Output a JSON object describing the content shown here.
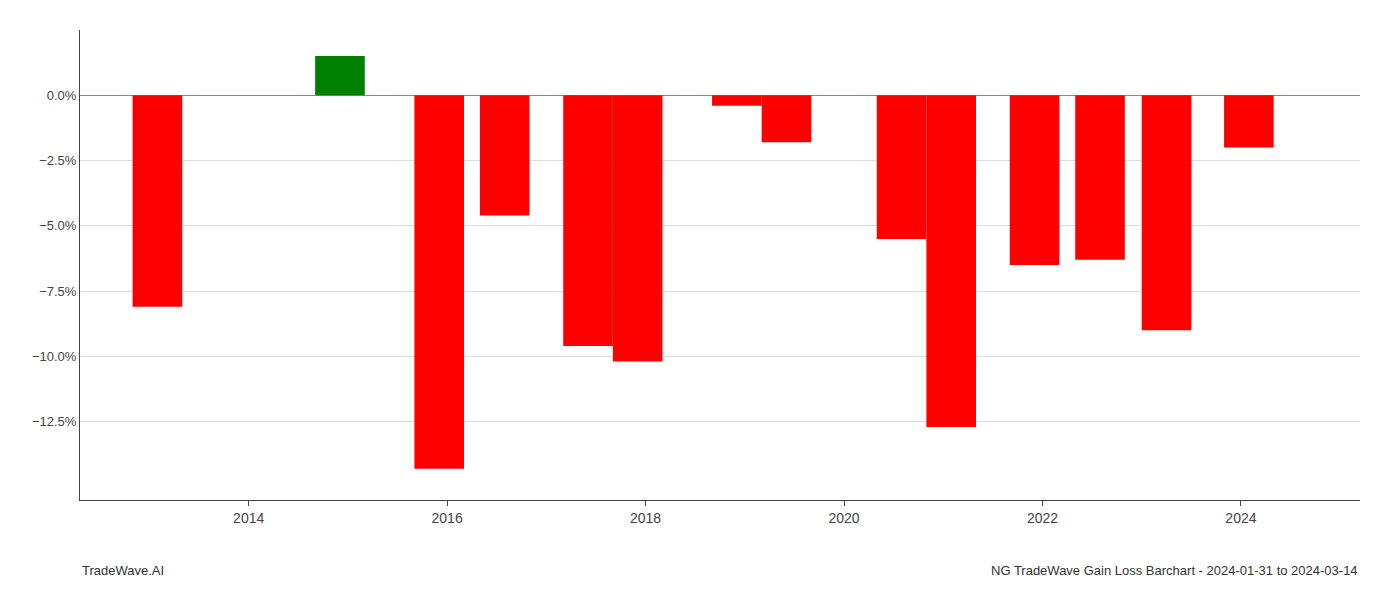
{
  "chart_data": {
    "type": "bar",
    "title": "NG TradeWave Gain Loss Barchart - 2024-01-31 to 2024-03-14",
    "annotations": [
      "TradeWave.AI"
    ],
    "x": [
      2013.08,
      2014.92,
      2015.92,
      2016.58,
      2017.42,
      2017.92,
      2018.92,
      2019.42,
      2020.58,
      2021.08,
      2021.92,
      2022.58,
      2023.25,
      2024.08
    ],
    "values": [
      -8.1,
      1.5,
      -14.3,
      -4.6,
      -9.6,
      -10.2,
      -0.4,
      -1.8,
      -5.5,
      -12.7,
      -6.5,
      -6.3,
      -9.0,
      -2.0
    ],
    "colors": [
      "#ff0000",
      "#008000",
      "#ff0000",
      "#ff0000",
      "#ff0000",
      "#ff0000",
      "#ff0000",
      "#ff0000",
      "#ff0000",
      "#ff0000",
      "#ff0000",
      "#ff0000",
      "#ff0000",
      "#ff0000"
    ],
    "xlim": [
      2012.3,
      2025.2
    ],
    "xticks": [
      2014,
      2016,
      2018,
      2020,
      2022,
      2024
    ],
    "ylim": [
      -15.5,
      2.5
    ],
    "yticks": [
      {
        "value": 0.0,
        "label": "0.0%"
      },
      {
        "value": -2.5,
        "label": "−2.5%"
      },
      {
        "value": -5.0,
        "label": "−5.0%"
      },
      {
        "value": -7.5,
        "label": "−7.5%"
      },
      {
        "value": -10.0,
        "label": "−10.0%"
      },
      {
        "value": -12.5,
        "label": "−12.5%"
      }
    ],
    "grid": "y"
  }
}
